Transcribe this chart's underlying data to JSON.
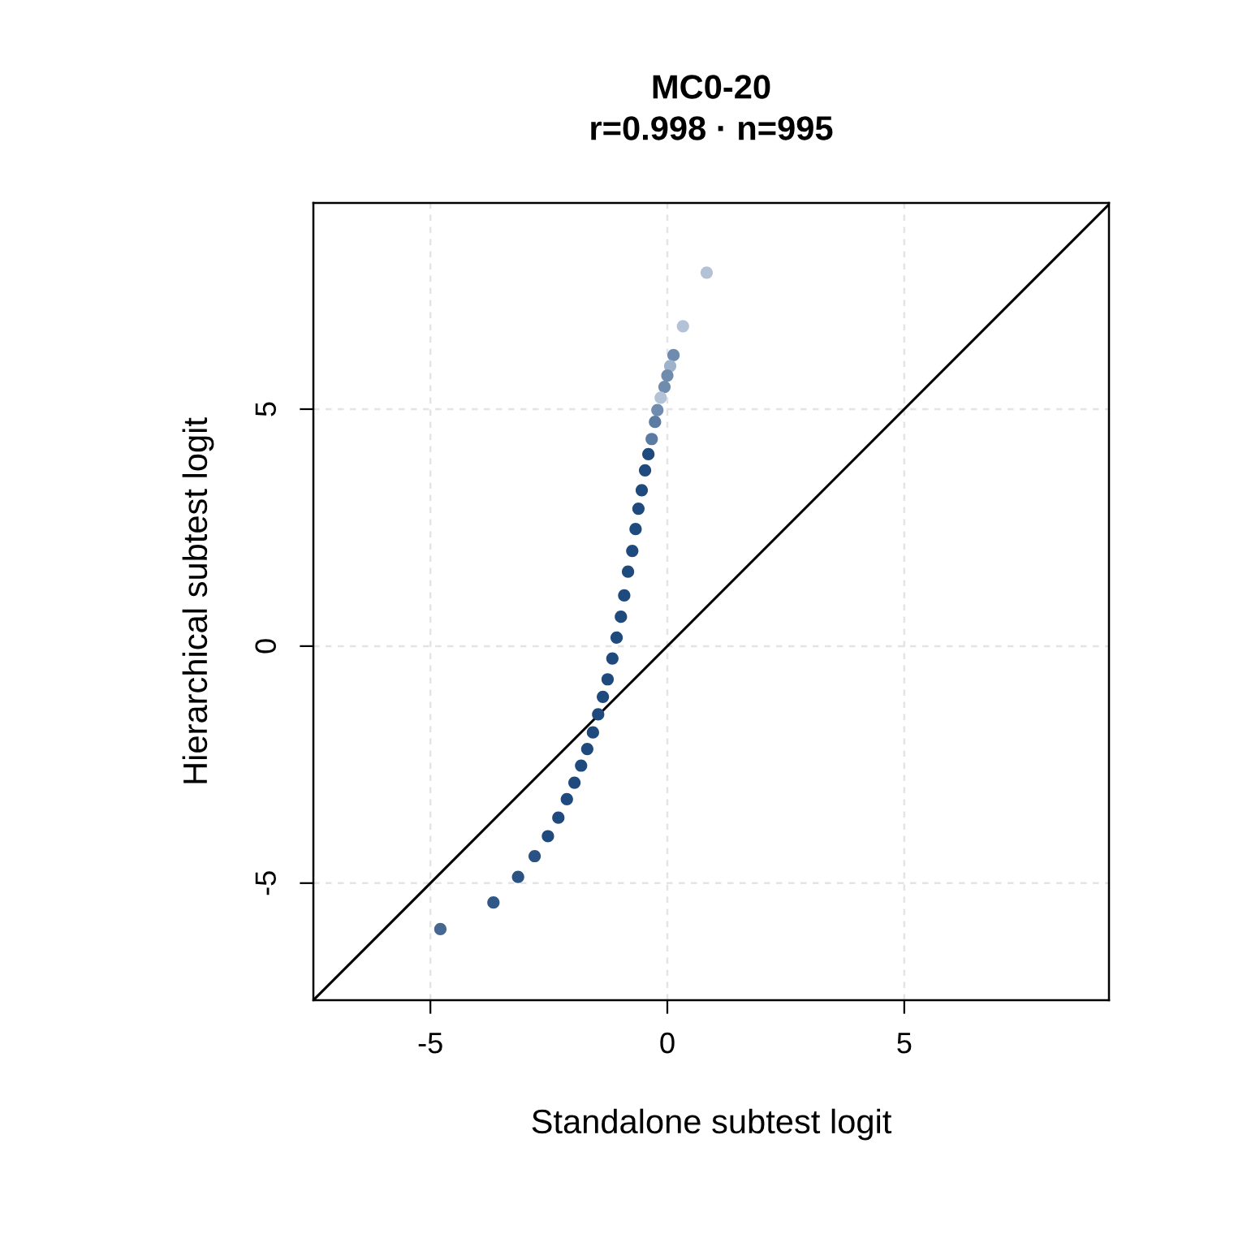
{
  "chart_data": {
    "type": "scatter",
    "title": "MC0-20\nr=0.998 · n=995",
    "xlabel": "Standalone subtest logit",
    "ylabel": "Hierarchical subtest logit",
    "xlim": [
      -7.47,
      9.32
    ],
    "ylim": [
      -7.47,
      9.35
    ],
    "xticks": [
      -5,
      0,
      5
    ],
    "yticks": [
      -5,
      0,
      5
    ],
    "grid": true,
    "series": [
      {
        "type": "line",
        "marker": "none",
        "color": "#000000",
        "x": [
          -7.47,
          9.32
        ],
        "values": [
          -7.47,
          9.32
        ]
      },
      {
        "marker": "circle",
        "x": [
          0.83,
          0.33,
          0.13,
          0.06,
          0.0,
          -0.06,
          -0.14,
          -0.21,
          -0.26,
          -0.33,
          -0.4,
          -0.47,
          -0.54,
          -0.61,
          -0.67,
          -0.74,
          -0.83,
          -0.91,
          -0.98,
          -1.07,
          -1.16,
          -1.26,
          -1.36,
          -1.46,
          -1.57,
          -1.69,
          -1.82,
          -1.96,
          -2.12,
          -2.3,
          -2.52,
          -2.8,
          -3.15,
          -3.67,
          -4.79
        ],
        "values": [
          7.88,
          6.75,
          6.14,
          5.91,
          5.71,
          5.47,
          5.24,
          4.98,
          4.73,
          4.37,
          4.05,
          3.71,
          3.29,
          2.9,
          2.47,
          2.01,
          1.57,
          1.07,
          0.62,
          0.18,
          -0.26,
          -0.7,
          -1.07,
          -1.44,
          -1.82,
          -2.17,
          -2.52,
          -2.88,
          -3.23,
          -3.62,
          -4.01,
          -4.43,
          -4.87,
          -5.41,
          -5.97
        ],
        "colors": [
          "#b3c2d6",
          "#b3c2d6",
          "#6f8cae",
          "#9fb2cb",
          "#6f8cae",
          "#6f8cae",
          "#b3c2d6",
          "#6f8cae",
          "#5a7ba2",
          "#5a7ba2",
          "#1f4a7e",
          "#1f4a7e",
          "#1f4a7e",
          "#1f4a7e",
          "#1f4a7e",
          "#1f4a7e",
          "#1f4a7e",
          "#1f4a7e",
          "#1f4a7e",
          "#1f4a7e",
          "#1f4a7e",
          "#1f4a7e",
          "#1f4a7e",
          "#1f4a7e",
          "#1f4a7e",
          "#1f4a7e",
          "#1f4a7e",
          "#1f4a7e",
          "#1f4a7e",
          "#1f4a7e",
          "#1f4a7e",
          "#2a5283",
          "#2a5283",
          "#2f5788",
          "#46678f"
        ]
      }
    ]
  }
}
